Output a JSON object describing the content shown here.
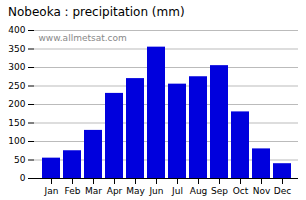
{
  "chart_data": {
    "type": "bar",
    "title": "Nobeoka : precipitation (mm)",
    "categories": [
      "Jan",
      "Feb",
      "Mar",
      "Apr",
      "May",
      "Jun",
      "Jul",
      "Aug",
      "Sep",
      "Oct",
      "Nov",
      "Dec"
    ],
    "values": [
      55,
      75,
      130,
      230,
      270,
      355,
      255,
      275,
      305,
      180,
      80,
      40
    ],
    "color": "#0000dd",
    "ylim": [
      0,
      400
    ],
    "yticks": [
      0,
      50,
      100,
      150,
      200,
      250,
      300,
      350,
      400
    ],
    "grid": true,
    "annotation": "www.allmetsat.com"
  }
}
